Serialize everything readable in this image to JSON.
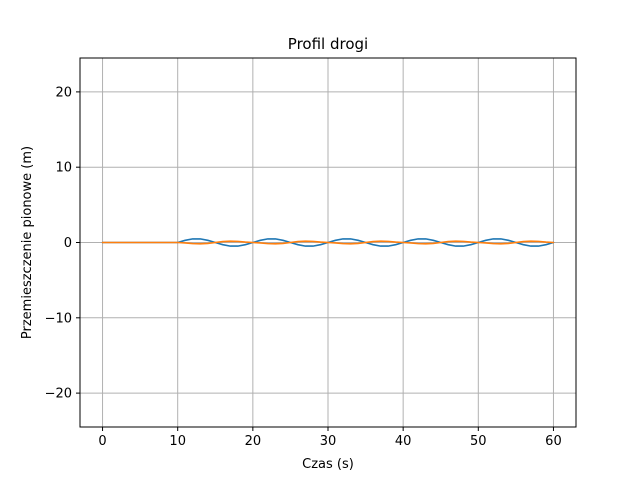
{
  "chart_data": {
    "type": "line",
    "title": "Profil drogi",
    "xlabel": "Czas (s)",
    "ylabel": "Przemieszczenie pionowe (m)",
    "xlim": [
      -3,
      63
    ],
    "ylim": [
      -24.5,
      24.5
    ],
    "xticks": [
      0,
      10,
      20,
      30,
      40,
      50,
      60
    ],
    "yticks": [
      -20,
      -10,
      0,
      10,
      20
    ],
    "xtick_labels": [
      "0",
      "10",
      "20",
      "30",
      "40",
      "50",
      "60"
    ],
    "ytick_labels": [
      "−20",
      "−10",
      "0",
      "10",
      "20"
    ],
    "grid": true,
    "series": [
      {
        "color": "#1f77b4",
        "x": [
          0,
          10,
          11,
          12,
          13,
          14,
          15,
          16,
          17,
          18,
          19,
          20,
          21,
          22,
          23,
          24,
          25,
          26,
          27,
          28,
          29,
          30,
          31,
          32,
          33,
          34,
          35,
          36,
          37,
          38,
          39,
          40,
          41,
          42,
          43,
          44,
          45,
          46,
          47,
          48,
          49,
          50,
          51,
          52,
          53,
          54,
          55,
          56,
          57,
          58,
          59,
          60
        ],
        "y": [
          0,
          0,
          0.29,
          0.48,
          0.48,
          0.29,
          0,
          -0.29,
          -0.48,
          -0.48,
          -0.29,
          0,
          0.29,
          0.48,
          0.48,
          0.29,
          0,
          -0.29,
          -0.48,
          -0.48,
          -0.29,
          0,
          0.29,
          0.48,
          0.48,
          0.29,
          0,
          -0.29,
          -0.48,
          -0.48,
          -0.29,
          0,
          0.29,
          0.48,
          0.48,
          0.29,
          0,
          -0.29,
          -0.48,
          -0.48,
          -0.29,
          0,
          0.29,
          0.48,
          0.48,
          0.29,
          0,
          -0.29,
          -0.48,
          -0.48,
          -0.29,
          0
        ]
      },
      {
        "color": "#ff7f0e",
        "x": [
          0,
          10,
          11,
          12,
          13,
          14,
          15,
          16,
          17,
          18,
          19,
          20,
          21,
          22,
          23,
          24,
          25,
          26,
          27,
          28,
          29,
          30,
          31,
          32,
          33,
          34,
          35,
          36,
          37,
          38,
          39,
          40,
          41,
          42,
          43,
          44,
          45,
          46,
          47,
          48,
          49,
          50,
          51,
          52,
          53,
          54,
          55,
          56,
          57,
          58,
          59,
          60
        ],
        "y": [
          0,
          0,
          -0.06,
          -0.15,
          -0.18,
          -0.12,
          0,
          0.12,
          0.18,
          0.15,
          0.06,
          0,
          -0.06,
          -0.15,
          -0.18,
          -0.12,
          0,
          0.12,
          0.18,
          0.15,
          0.06,
          0,
          -0.06,
          -0.15,
          -0.18,
          -0.12,
          0,
          0.12,
          0.18,
          0.15,
          0.06,
          0,
          -0.06,
          -0.15,
          -0.18,
          -0.12,
          0,
          0.12,
          0.18,
          0.15,
          0.06,
          0,
          -0.06,
          -0.15,
          -0.18,
          -0.12,
          0,
          0.12,
          0.18,
          0.15,
          0.06,
          0
        ]
      }
    ]
  }
}
